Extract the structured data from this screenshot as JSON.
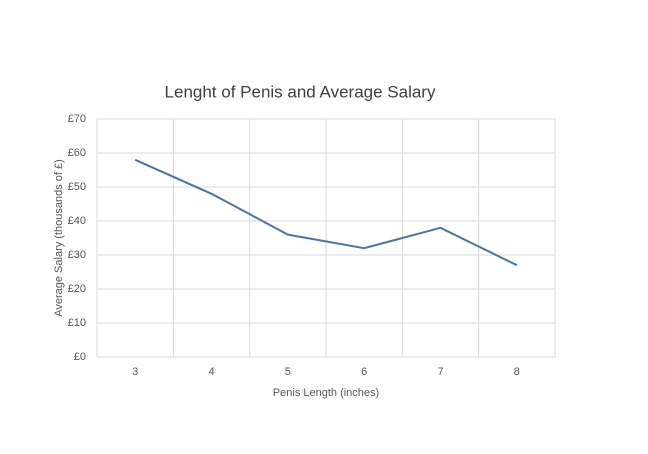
{
  "chart_data": {
    "type": "line",
    "title": "Lenght of Penis and Average Salary",
    "x_label": "Penis Length (inches)",
    "y_label": "Average Salary (thousands of £)",
    "categories": [
      "3",
      "4",
      "5",
      "6",
      "7",
      "8"
    ],
    "values": [
      58,
      48,
      36,
      32,
      38,
      27
    ],
    "color": "#4f72a6",
    "ylim": [
      0,
      70
    ],
    "yticks": [
      {
        "value": 0,
        "label": "£0"
      },
      {
        "value": 10,
        "label": "£10"
      },
      {
        "value": 20,
        "label": "£20"
      },
      {
        "value": 30,
        "label": "£30"
      },
      {
        "value": 40,
        "label": "£40"
      },
      {
        "value": 50,
        "label": "£50"
      },
      {
        "value": 60,
        "label": "£60"
      },
      {
        "value": 70,
        "label": "£70"
      }
    ],
    "grid": true
  }
}
